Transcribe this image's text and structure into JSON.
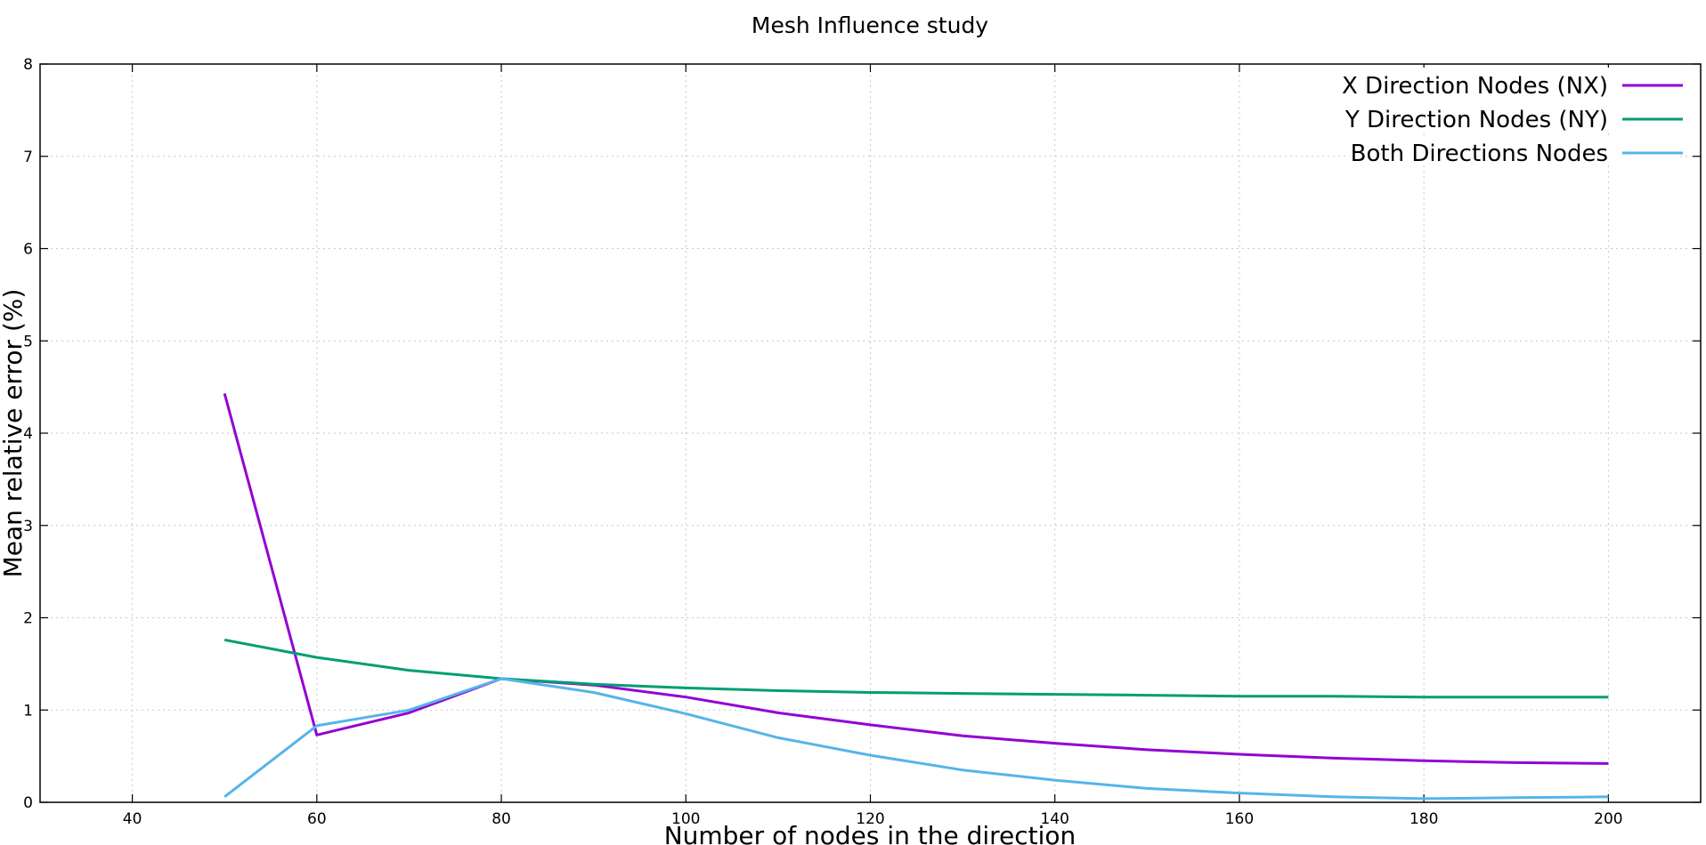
{
  "chart_data": {
    "type": "line",
    "title": "Mesh Influence study",
    "xlabel": "Number of nodes in the direction",
    "ylabel": "Mean relative error (%)",
    "xlim": [
      30,
      210
    ],
    "ylim": [
      0,
      8
    ],
    "xticks": [
      40,
      60,
      80,
      100,
      120,
      140,
      160,
      180,
      200
    ],
    "yticks": [
      0,
      1,
      2,
      3,
      4,
      5,
      6,
      7,
      8
    ],
    "grid": true,
    "legend_position": "top-right",
    "series": [
      {
        "name": "X Direction Nodes (NX)",
        "color": "#9400d3",
        "x": [
          50,
          60,
          70,
          80,
          90,
          100,
          110,
          120,
          130,
          140,
          150,
          160,
          170,
          180,
          190,
          200
        ],
        "y": [
          4.43,
          0.73,
          0.97,
          1.34,
          1.27,
          1.14,
          0.97,
          0.84,
          0.72,
          0.64,
          0.57,
          0.52,
          0.48,
          0.45,
          0.43,
          0.42
        ]
      },
      {
        "name": "Y Direction Nodes (NY)",
        "color": "#009e73",
        "x": [
          50,
          60,
          70,
          80,
          90,
          100,
          110,
          120,
          130,
          140,
          150,
          160,
          170,
          180,
          190,
          200
        ],
        "y": [
          1.76,
          1.57,
          1.43,
          1.34,
          1.28,
          1.24,
          1.21,
          1.19,
          1.18,
          1.17,
          1.16,
          1.15,
          1.15,
          1.14,
          1.14,
          1.14
        ]
      },
      {
        "name": "Both Directions Nodes",
        "color": "#56b4e9",
        "x": [
          50,
          60,
          70,
          80,
          90,
          100,
          110,
          120,
          130,
          140,
          150,
          160,
          170,
          180,
          190,
          200
        ],
        "y": [
          0.06,
          0.83,
          1.0,
          1.34,
          1.19,
          0.96,
          0.7,
          0.51,
          0.35,
          0.24,
          0.15,
          0.1,
          0.06,
          0.04,
          0.05,
          0.06
        ]
      }
    ]
  }
}
